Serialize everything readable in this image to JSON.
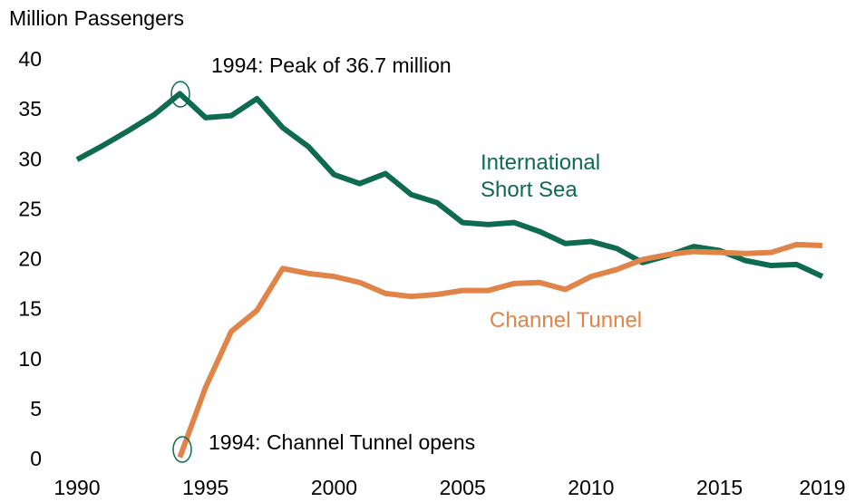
{
  "chart_data": {
    "type": "line",
    "y_label": "Million Passengers",
    "x": [
      1990,
      1991,
      1992,
      1993,
      1994,
      1995,
      1996,
      1997,
      1998,
      1999,
      2000,
      2001,
      2002,
      2003,
      2004,
      2005,
      2006,
      2007,
      2008,
      2009,
      2010,
      2011,
      2012,
      2013,
      2014,
      2015,
      2016,
      2017,
      2018,
      2019
    ],
    "series": [
      {
        "name": "International Short Sea",
        "color": "#0e6b50",
        "values": [
          30.1,
          31.5,
          33.0,
          34.6,
          36.7,
          34.3,
          34.5,
          36.2,
          33.3,
          31.4,
          28.6,
          27.7,
          28.7,
          26.6,
          25.8,
          23.8,
          23.6,
          23.8,
          22.9,
          21.7,
          21.9,
          21.2,
          19.8,
          20.5,
          21.4,
          21.0,
          20.0,
          19.5,
          19.6,
          18.4
        ]
      },
      {
        "name": "Channel Tunnel",
        "color": "#e0844a",
        "values": [
          null,
          null,
          null,
          null,
          0.3,
          7.3,
          12.9,
          15.0,
          19.2,
          18.7,
          18.4,
          17.8,
          16.7,
          16.4,
          16.6,
          17.0,
          17.0,
          17.7,
          17.8,
          17.1,
          18.4,
          19.1,
          20.1,
          20.6,
          20.9,
          20.8,
          20.7,
          20.8,
          21.6,
          21.5
        ]
      }
    ],
    "annotations": [
      "1994: Peak of 36.7 million",
      "1994: Channel Tunnel opens"
    ],
    "xlim": [
      1990,
      2019
    ],
    "xticks": [
      1990,
      1995,
      2000,
      2005,
      2010,
      2015,
      2019
    ],
    "ylim": [
      0,
      40
    ],
    "yticks": [
      0,
      5,
      10,
      15,
      20,
      25,
      30,
      35,
      40
    ],
    "grid": false
  }
}
